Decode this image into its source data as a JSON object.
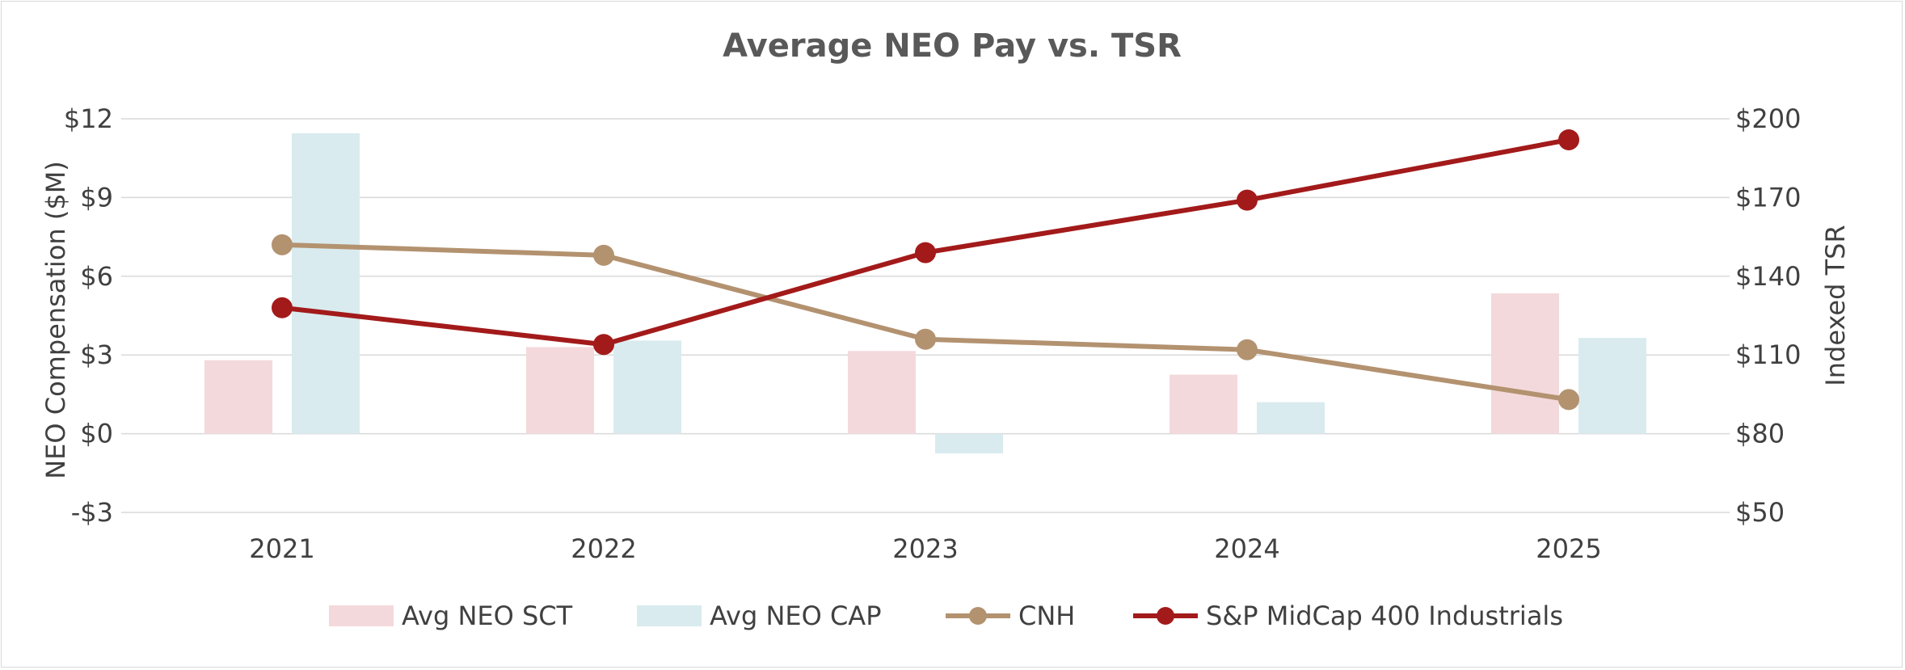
{
  "chart_data": {
    "type": "bar+line",
    "title": "Average NEO Pay vs. TSR",
    "categories": [
      "2021",
      "2022",
      "2023",
      "2024",
      "2025"
    ],
    "left_axis": {
      "label": "NEO Compensation ($M)",
      "ylim": [
        -3,
        12
      ],
      "ticks": [
        -3,
        0,
        3,
        6,
        9,
        12
      ],
      "tick_labels": [
        "-$3",
        "$0",
        "$3",
        "$6",
        "$9",
        "$12"
      ]
    },
    "right_axis": {
      "label": "Indexed TSR",
      "ylim": [
        50,
        200
      ],
      "ticks": [
        50,
        80,
        110,
        140,
        170,
        200
      ],
      "tick_labels": [
        "$50",
        "$80",
        "$110",
        "$140",
        "$170",
        "$200"
      ]
    },
    "bar_series": [
      {
        "name": "Avg NEO SCT",
        "axis": "left",
        "color": "#f4d9dc",
        "values": [
          2.8,
          3.3,
          3.15,
          2.25,
          5.35
        ]
      },
      {
        "name": "Avg NEO CAP",
        "axis": "left",
        "color": "#d9ebef",
        "values": [
          11.45,
          3.55,
          -0.75,
          1.2,
          3.65
        ]
      }
    ],
    "line_series": [
      {
        "name": "CNH",
        "axis": "right",
        "color": "#b39270",
        "values": [
          152,
          148,
          116,
          112,
          93
        ]
      },
      {
        "name": "S&P MidCap 400 Industrials",
        "axis": "right",
        "color": "#a31a1a",
        "values": [
          128,
          114,
          149,
          169,
          192
        ]
      }
    ],
    "grid": true,
    "legend_position": "bottom"
  }
}
